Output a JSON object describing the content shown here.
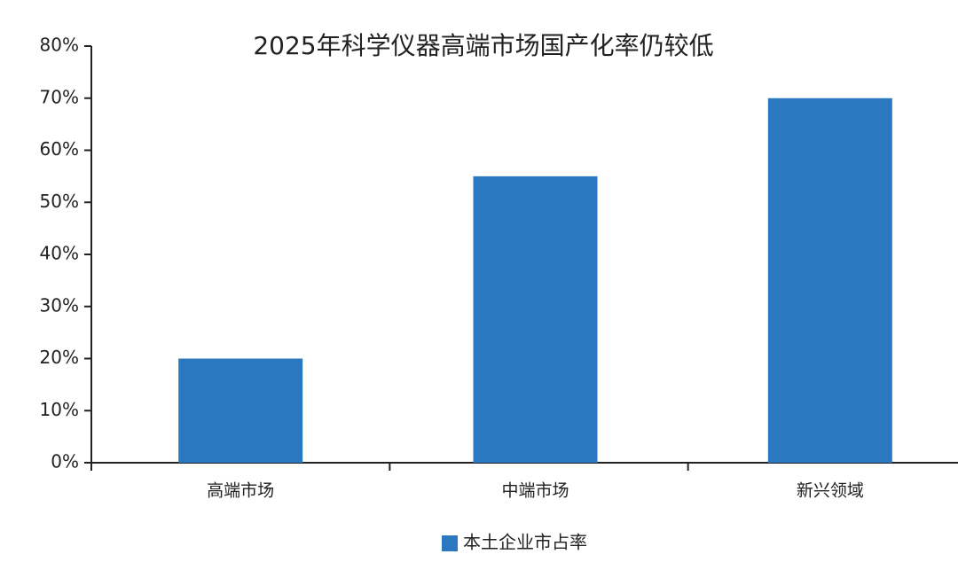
{
  "chart_data": {
    "type": "bar",
    "title": "2025年科学仪器高端市场国产化率仍较低",
    "categories": [
      "高端市场",
      "中端市场",
      "新兴领域"
    ],
    "series": [
      {
        "name": "本土企业市占率",
        "color": "#2a79c0",
        "values": [
          20,
          55,
          70
        ]
      }
    ],
    "ylim": [
      0,
      80
    ],
    "yticks": [
      {
        "value": 0,
        "label": "0%"
      },
      {
        "value": 10,
        "label": "10%"
      },
      {
        "value": 20,
        "label": "20%"
      },
      {
        "value": 30,
        "label": "30%"
      },
      {
        "value": 40,
        "label": "40%"
      },
      {
        "value": 50,
        "label": "50%"
      },
      {
        "value": 60,
        "label": "60%"
      },
      {
        "value": 70,
        "label": "70%"
      },
      {
        "value": 80,
        "label": "80%"
      }
    ],
    "grid": false,
    "legend": "bottom"
  }
}
